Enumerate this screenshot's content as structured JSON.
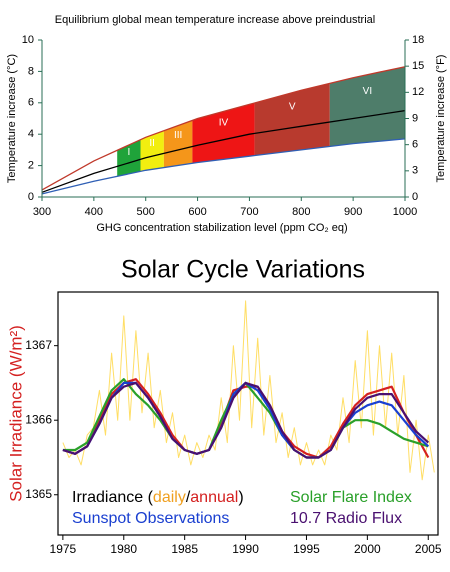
{
  "chart_data": [
    {
      "type": "line",
      "title": "Equilibrium global mean temperature increase above preindustrial",
      "x_label": "GHG concentration stabilization level (ppm CO₂ eq)",
      "y_label": "Temperature increase (°C)",
      "y2_label": "Temperature increase (°F)",
      "xlim": [
        300,
        1000
      ],
      "xticks": [
        300,
        400,
        500,
        600,
        700,
        800,
        900,
        1000
      ],
      "ylim": [
        0,
        10
      ],
      "yticks": [
        0,
        2,
        4,
        6,
        8,
        10
      ],
      "y2lim": [
        0,
        18
      ],
      "y2ticks": [
        0,
        3,
        6,
        9,
        12,
        15,
        18
      ],
      "x": [
        300,
        400,
        500,
        600,
        700,
        800,
        900,
        1000
      ],
      "series": [
        {
          "color": "#c0392b",
          "values": [
            0.45,
            2.3,
            3.8,
            5.0,
            5.9,
            6.8,
            7.6,
            8.3
          ]
        },
        {
          "color": "#000000",
          "values": [
            0.3,
            1.5,
            2.5,
            3.3,
            4.0,
            4.5,
            5.0,
            5.5
          ]
        },
        {
          "color": "#2f5fb5",
          "values": [
            0.2,
            1.0,
            1.7,
            2.2,
            2.6,
            3.0,
            3.4,
            3.7
          ]
        }
      ],
      "bands": [
        {
          "label": "I",
          "from": 445,
          "to": 490,
          "color": "#1fa33a"
        },
        {
          "label": "II",
          "from": 490,
          "to": 535,
          "color": "#f2ee10"
        },
        {
          "label": "III",
          "from": 535,
          "to": 590,
          "color": "#f5961a"
        },
        {
          "label": "IV",
          "from": 590,
          "to": 710,
          "color": "#ee1515"
        },
        {
          "label": "V",
          "from": 710,
          "to": 855,
          "color": "#b83a2e"
        },
        {
          "label": "VI",
          "from": 855,
          "to": 1000,
          "color": "#4e7d6a"
        }
      ]
    },
    {
      "type": "line",
      "title": "Solar Cycle Variations",
      "y_label": "Solar Irradiance (W/m²)",
      "xlim": [
        1974.6,
        2005.8
      ],
      "xticks": [
        1975,
        1980,
        1985,
        1990,
        1995,
        2000,
        2005
      ],
      "ylim": [
        1364.46,
        1367.72
      ],
      "yticks": [
        1365,
        1366,
        1367
      ],
      "x": [
        1975,
        1976,
        1977,
        1978,
        1979,
        1980,
        1981,
        1982,
        1983,
        1984,
        1985,
        1986,
        1987,
        1988,
        1989,
        1990,
        1991,
        1992,
        1993,
        1994,
        1995,
        1996,
        1997,
        1998,
        1999,
        2000,
        2001,
        2002,
        2003,
        2004,
        2005
      ],
      "legend_group": {
        "prefix": "Irradiance (",
        "separator": "/",
        "suffix": ")"
      },
      "series": [
        {
          "name": "daily",
          "color": "#ffd84a",
          "legend_color": "#f0a020",
          "x": [
            1975,
            1975.5,
            1976,
            1976.5,
            1977,
            1977.5,
            1978,
            1978.5,
            1979,
            1979.5,
            1980,
            1980.5,
            1981,
            1981.5,
            1982,
            1982.5,
            1983,
            1983.5,
            1984,
            1984.5,
            1985,
            1985.5,
            1986,
            1986.5,
            1987,
            1987.5,
            1988,
            1988.5,
            1989,
            1989.5,
            1990,
            1990.5,
            1991,
            1991.5,
            1992,
            1992.5,
            1993,
            1993.5,
            1994,
            1994.5,
            1995,
            1995.5,
            1996,
            1996.5,
            1997,
            1997.5,
            1998,
            1998.5,
            1999,
            1999.5,
            2000,
            2000.5,
            2001,
            2001.5,
            2002,
            2002.5,
            2003,
            2003.5,
            2004,
            2004.5,
            2005,
            2005.5
          ],
          "values": [
            1365.7,
            1365.5,
            1365.6,
            1365.4,
            1365.8,
            1365.9,
            1366.4,
            1365.8,
            1366.9,
            1366.0,
            1367.4,
            1366.0,
            1367.2,
            1366.1,
            1366.9,
            1365.9,
            1366.4,
            1365.7,
            1366.1,
            1365.5,
            1365.8,
            1365.4,
            1365.7,
            1365.5,
            1365.8,
            1365.6,
            1366.3,
            1365.7,
            1367.0,
            1366.0,
            1367.6,
            1365.9,
            1367.1,
            1365.8,
            1366.6,
            1365.7,
            1366.1,
            1365.5,
            1365.9,
            1365.4,
            1365.7,
            1365.4,
            1365.6,
            1365.4,
            1365.8,
            1365.6,
            1366.3,
            1365.7,
            1366.8,
            1365.9,
            1367.2,
            1365.8,
            1367.0,
            1365.9,
            1366.9,
            1365.8,
            1366.6,
            1365.3,
            1366.0,
            1365.2,
            1365.8,
            1365.3
          ]
        },
        {
          "name": "annual",
          "color": "#d42020",
          "values": [
            1365.6,
            1365.55,
            1365.65,
            1366.0,
            1366.35,
            1366.5,
            1366.55,
            1366.35,
            1366.1,
            1365.8,
            1365.6,
            1365.55,
            1365.6,
            1365.95,
            1366.4,
            1366.45,
            1366.45,
            1366.2,
            1365.85,
            1365.65,
            1365.55,
            1365.5,
            1365.65,
            1365.95,
            1366.2,
            1366.35,
            1366.4,
            1366.45,
            1366.1,
            1365.8,
            1365.5
          ]
        },
        {
          "name": "Solar Flare Index",
          "color": "#2aa02a",
          "values": [
            1365.6,
            1365.6,
            1365.7,
            1366.05,
            1366.4,
            1366.55,
            1366.35,
            1366.2,
            1366.0,
            1365.75,
            1365.6,
            1365.55,
            1365.6,
            1366.0,
            1366.35,
            1366.5,
            1366.3,
            1366.1,
            1365.8,
            1365.6,
            1365.5,
            1365.5,
            1365.6,
            1365.9,
            1366.0,
            1366.0,
            1365.95,
            1365.85,
            1365.75,
            1365.7,
            1365.65
          ]
        },
        {
          "name": "Sunspot Observations",
          "color": "#1a3fd0",
          "values": [
            1365.6,
            1365.55,
            1365.65,
            1365.95,
            1366.3,
            1366.5,
            1366.5,
            1366.3,
            1366.05,
            1365.75,
            1365.6,
            1365.55,
            1365.6,
            1365.9,
            1366.35,
            1366.5,
            1366.4,
            1366.15,
            1365.8,
            1365.6,
            1365.5,
            1365.5,
            1365.6,
            1365.9,
            1366.1,
            1366.2,
            1366.25,
            1366.2,
            1366.0,
            1365.8,
            1365.65
          ]
        },
        {
          "name": "10.7 Radio Flux",
          "color": "#4a1070",
          "values": [
            1365.6,
            1365.55,
            1365.65,
            1365.95,
            1366.3,
            1366.45,
            1366.5,
            1366.3,
            1366.05,
            1365.75,
            1365.6,
            1365.55,
            1365.6,
            1365.9,
            1366.3,
            1366.5,
            1366.45,
            1366.2,
            1365.85,
            1365.6,
            1365.5,
            1365.5,
            1365.6,
            1365.9,
            1366.15,
            1366.3,
            1366.35,
            1366.35,
            1366.1,
            1365.85,
            1365.7
          ]
        }
      ]
    }
  ]
}
